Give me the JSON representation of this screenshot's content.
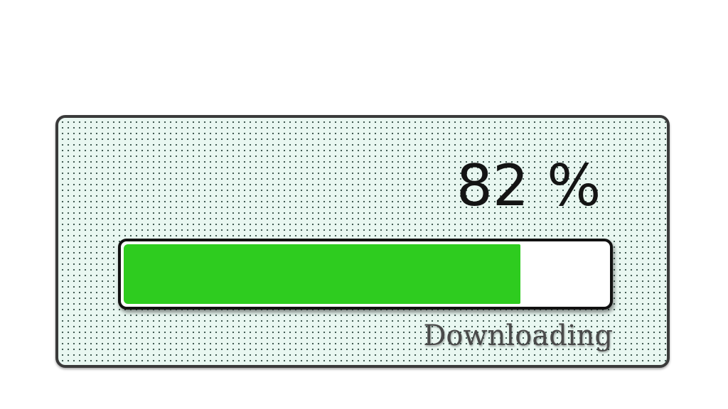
{
  "progress": {
    "percent_label": "82 %",
    "value": 0.82,
    "status_label": "Downloading",
    "fill_color": "#2ecc1f",
    "track_color": "#ffffff",
    "panel_color": "#e9f7f1"
  }
}
